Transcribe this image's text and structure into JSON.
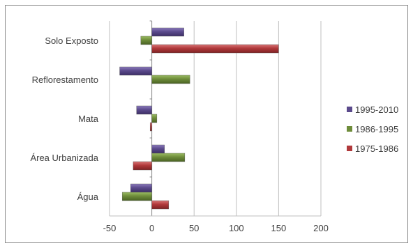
{
  "chart_data": {
    "type": "bar",
    "orientation": "horizontal",
    "title": "",
    "xlabel": "",
    "ylabel": "",
    "categories": [
      "Água",
      "Área Urbanizada",
      "Mata",
      "Reflorestamento",
      "Solo Exposto"
    ],
    "series": [
      {
        "name": "1995-2010",
        "color": "#5b4a8c",
        "values": [
          -25,
          15,
          -18,
          -38,
          38
        ]
      },
      {
        "name": "1986-1995",
        "color": "#6e8c3a",
        "values": [
          -35,
          39,
          6,
          45,
          -13
        ]
      },
      {
        "name": "1975-1986",
        "color": "#b0393b",
        "values": [
          20,
          -22,
          -2,
          0,
          150
        ]
      }
    ],
    "xlim": [
      -50,
      200
    ],
    "x_ticks": [
      "-50",
      "0",
      "50",
      "100",
      "150",
      "200"
    ],
    "grid": "vertical",
    "legend_position": "right"
  }
}
